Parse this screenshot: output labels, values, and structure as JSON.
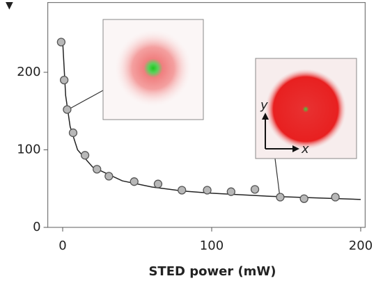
{
  "chart_data": {
    "type": "scatter",
    "xlabel": "STED power (mW)",
    "x": [
      -1,
      1,
      3,
      7,
      15,
      23,
      31,
      48,
      64,
      80,
      97,
      113,
      129,
      146,
      162,
      183
    ],
    "values": [
      239,
      190,
      152,
      122,
      93,
      75,
      66,
      59,
      56,
      48,
      48,
      46,
      49,
      39,
      37,
      39
    ],
    "fit_x": [
      0,
      2,
      5,
      10,
      20,
      40,
      60,
      80,
      100,
      140,
      200
    ],
    "fit_values": [
      240,
      170,
      130,
      100,
      78,
      60,
      52,
      47,
      44,
      40,
      36
    ],
    "color": "#b8b8b8",
    "fit_color": "#222222",
    "xlim": [
      -10,
      203
    ],
    "xticks": [
      0,
      100,
      200
    ],
    "ylim": [
      0,
      290
    ],
    "yticks": [
      0,
      100,
      200
    ],
    "annotations": [
      "y",
      "x"
    ]
  }
}
